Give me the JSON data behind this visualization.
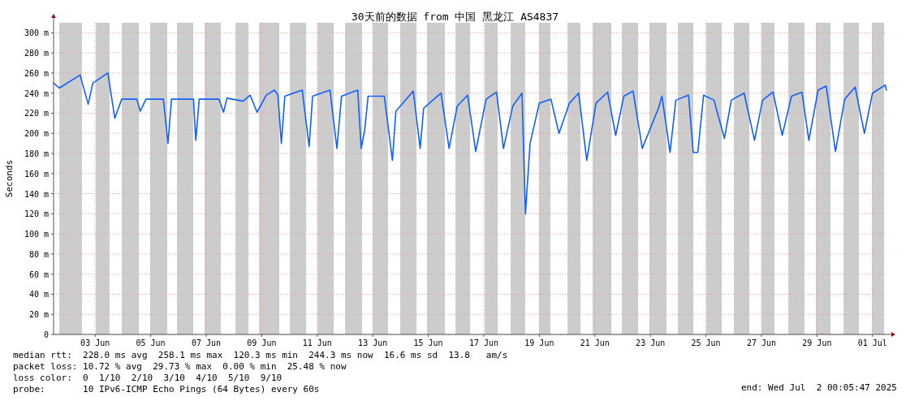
{
  "chart_data": {
    "type": "line",
    "title": "30天前的数据 from 中国 黑龙江 AS4837",
    "ylabel": "Seconds",
    "x": [
      "2025-06-02T00:05",
      "2025-06-02T05:00",
      "2025-06-02T23:00",
      "2025-06-03T06:00",
      "2025-06-03T10:00",
      "2025-06-03T23:00",
      "2025-06-04T05:00",
      "2025-06-04T11:00",
      "2025-06-05T00:00",
      "2025-06-05T03:00",
      "2025-06-05T08:00",
      "2025-06-05T23:00",
      "2025-06-06T03:00",
      "2025-06-06T06:00",
      "2025-06-07T01:00",
      "2025-06-07T03:00",
      "2025-06-07T06:00",
      "2025-06-07T23:00",
      "2025-06-08T03:00",
      "2025-06-08T06:00",
      "2025-06-08T20:00",
      "2025-06-09T02:00",
      "2025-06-09T08:00",
      "2025-06-09T16:00",
      "2025-06-09T23:00",
      "2025-06-10T02:00",
      "2025-06-10T05:00",
      "2025-06-10T08:00",
      "2025-06-10T23:00",
      "2025-06-11T05:00",
      "2025-06-11T08:00",
      "2025-06-11T23:00",
      "2025-06-12T05:00",
      "2025-06-12T09:00",
      "2025-06-12T23:00",
      "2025-06-13T02:00",
      "2025-06-13T05:00",
      "2025-06-13T08:00",
      "2025-06-13T22:00",
      "2025-06-14T05:00",
      "2025-06-14T08:00",
      "2025-06-14T23:00",
      "2025-06-15T05:00",
      "2025-06-15T08:00",
      "2025-06-15T23:00",
      "2025-06-16T06:00",
      "2025-06-16T13:00",
      "2025-06-16T22:00",
      "2025-06-17T05:00",
      "2025-06-17T14:00",
      "2025-06-17T23:00",
      "2025-06-18T05:00",
      "2025-06-18T13:00",
      "2025-06-18T21:00",
      "2025-06-19T00:00",
      "2025-06-19T04:00",
      "2025-06-19T12:00",
      "2025-06-19T22:00",
      "2025-06-20T05:00",
      "2025-06-20T14:00",
      "2025-06-20T22:00",
      "2025-06-21T05:00",
      "2025-06-21T13:00",
      "2025-06-21T23:00",
      "2025-06-22T06:00",
      "2025-06-22T13:00",
      "2025-06-22T21:00",
      "2025-06-23T05:00",
      "2025-06-23T19:00",
      "2025-06-23T22:00",
      "2025-06-24T05:00",
      "2025-06-24T10:00",
      "2025-06-24T21:00",
      "2025-06-25T01:00",
      "2025-06-25T05:00",
      "2025-06-25T10:00",
      "2025-06-25T19:00",
      "2025-06-26T04:00",
      "2025-06-26T10:00",
      "2025-06-26T21:00",
      "2025-06-27T06:00",
      "2025-06-27T13:00",
      "2025-06-27T22:00",
      "2025-06-28T06:00",
      "2025-06-28T14:00",
      "2025-06-28T23:00",
      "2025-06-29T05:00",
      "2025-06-29T13:00",
      "2025-06-29T20:00",
      "2025-06-30T04:00",
      "2025-06-30T12:00",
      "2025-06-30T21:00",
      "2025-07-01T05:00",
      "2025-07-01T12:00",
      "2025-07-01T23:00",
      "2025-07-02T00:05"
    ],
    "series": [
      {
        "color": "#1060ff",
        "values": [
          250,
          245,
          258,
          229,
          250,
          260,
          215,
          234,
          234,
          222,
          234,
          234,
          190,
          234,
          234,
          193,
          234,
          234,
          221,
          235,
          232,
          238,
          221,
          238,
          243,
          238,
          190,
          237,
          243,
          187,
          237,
          243,
          185,
          237,
          243,
          185,
          203,
          237,
          237,
          173,
          222,
          242,
          185,
          225,
          240,
          185,
          227,
          238,
          182,
          234,
          241,
          185,
          227,
          240,
          120,
          190,
          230,
          234,
          200,
          230,
          240,
          173,
          230,
          241,
          198,
          237,
          242,
          185,
          225,
          237,
          181,
          233,
          238,
          181,
          181,
          238,
          233,
          195,
          233,
          240,
          193,
          233,
          241,
          198,
          237,
          241,
          193,
          243,
          247,
          182,
          234,
          246,
          200,
          240,
          248,
          243
        ]
      }
    ],
    "xlim": [
      "2025-06-02T00:05",
      "2025-07-02T00:05"
    ],
    "xticks": [
      {
        "value": "2025-06-03T12:00",
        "label": "03 Jun"
      },
      {
        "value": "2025-06-05T12:00",
        "label": "05 Jun"
      },
      {
        "value": "2025-06-07T12:00",
        "label": "07 Jun"
      },
      {
        "value": "2025-06-09T12:00",
        "label": "09 Jun"
      },
      {
        "value": "2025-06-11T12:00",
        "label": "11 Jun"
      },
      {
        "value": "2025-06-13T12:00",
        "label": "13 Jun"
      },
      {
        "value": "2025-06-15T12:00",
        "label": "15 Jun"
      },
      {
        "value": "2025-06-17T12:00",
        "label": "17 Jun"
      },
      {
        "value": "2025-06-19T12:00",
        "label": "19 Jun"
      },
      {
        "value": "2025-06-21T12:00",
        "label": "21 Jun"
      },
      {
        "value": "2025-06-23T12:00",
        "label": "23 Jun"
      },
      {
        "value": "2025-06-25T12:00",
        "label": "25 Jun"
      },
      {
        "value": "2025-06-27T12:00",
        "label": "27 Jun"
      },
      {
        "value": "2025-06-29T12:00",
        "label": "29 Jun"
      },
      {
        "value": "2025-07-01T12:00",
        "label": "01 Jul"
      }
    ],
    "ylim": [
      0,
      310
    ],
    "yticks": [
      0,
      {
        "value": 20,
        "label": "20 m"
      },
      {
        "value": 40,
        "label": "40 m"
      },
      {
        "value": 60,
        "label": "60 m"
      },
      {
        "value": 80,
        "label": "80 m"
      },
      {
        "value": 100,
        "label": "100 m"
      },
      {
        "value": 120,
        "label": "120 m"
      },
      {
        "value": 140,
        "label": "140 m"
      },
      {
        "value": 160,
        "label": "160 m"
      },
      {
        "value": 180,
        "label": "180 m"
      },
      {
        "value": 200,
        "label": "200 m"
      },
      {
        "value": 220,
        "label": "220 m"
      },
      {
        "value": 240,
        "label": "240 m"
      },
      {
        "value": 260,
        "label": "260 m"
      },
      {
        "value": 280,
        "label": "280 m"
      },
      {
        "value": 300,
        "label": "300 m"
      }
    ],
    "grid": true,
    "bands": [
      {
        "axis": "x",
        "from": "2025-06-02T05:04",
        "to": "2025-06-03T00:42",
        "color": "#cccccc"
      },
      {
        "axis": "x",
        "from": "2025-06-03T12:38",
        "to": "2025-06-04T00:33",
        "color": "#cccccc"
      },
      {
        "axis": "x",
        "from": "2025-06-04T11:05",
        "to": "2025-06-05T01:49",
        "color": "#cccccc"
      },
      {
        "axis": "x",
        "from": "2025-06-05T11:39",
        "to": "2025-06-06T02:23",
        "color": "#cccccc"
      },
      {
        "axis": "x",
        "from": "2025-06-06T10:48",
        "to": "2025-06-07T00:50",
        "color": "#cccccc"
      },
      {
        "axis": "x",
        "from": "2025-06-07T10:40",
        "to": "2025-06-08T00:42",
        "color": "#cccccc"
      },
      {
        "axis": "x",
        "from": "2025-06-08T13:20",
        "to": "2025-06-09T00:33",
        "color": "#cccccc"
      },
      {
        "axis": "x",
        "from": "2025-06-09T09:42",
        "to": "2025-06-10T03:14",
        "color": "#cccccc"
      },
      {
        "axis": "x",
        "from": "2025-06-10T12:22",
        "to": "2025-06-11T02:23",
        "color": "#cccccc"
      },
      {
        "axis": "x",
        "from": "2025-06-11T12:13",
        "to": "2025-06-12T02:15",
        "color": "#cccccc"
      },
      {
        "axis": "x",
        "from": "2025-06-12T12:04",
        "to": "2025-06-13T02:49",
        "color": "#cccccc"
      },
      {
        "axis": "x",
        "from": "2025-06-13T11:56",
        "to": "2025-06-14T01:16",
        "color": "#cccccc"
      },
      {
        "axis": "x",
        "from": "2025-06-14T11:47",
        "to": "2025-06-15T01:49",
        "color": "#cccccc"
      },
      {
        "axis": "x",
        "from": "2025-06-15T10:57",
        "to": "2025-06-16T02:23",
        "color": "#cccccc"
      },
      {
        "axis": "x",
        "from": "2025-06-16T11:31",
        "to": "2025-06-17T00:09",
        "color": "#cccccc"
      },
      {
        "axis": "x",
        "from": "2025-06-17T12:46",
        "to": "2025-06-18T00:00",
        "color": "#cccccc"
      },
      {
        "axis": "x",
        "from": "2025-06-18T11:14",
        "to": "2025-06-18T23:51",
        "color": "#cccccc"
      },
      {
        "axis": "x",
        "from": "2025-06-19T11:47",
        "to": "2025-06-19T21:37",
        "color": "#cccccc"
      },
      {
        "axis": "x",
        "from": "2025-06-20T12:22",
        "to": "2025-06-20T23:34",
        "color": "#cccccc"
      },
      {
        "axis": "x",
        "from": "2025-06-21T10:06",
        "to": "2025-06-22T02:15",
        "color": "#cccccc"
      },
      {
        "axis": "x",
        "from": "2025-06-22T11:22",
        "to": "2025-06-23T01:23",
        "color": "#cccccc"
      },
      {
        "axis": "x",
        "from": "2025-06-23T11:14",
        "to": "2025-06-24T01:58",
        "color": "#cccccc"
      },
      {
        "axis": "x",
        "from": "2025-06-24T11:47",
        "to": "2025-06-25T01:08",
        "color": "#cccccc"
      },
      {
        "axis": "x",
        "from": "2025-06-25T12:22",
        "to": "2025-06-26T01:41",
        "color": "#cccccc"
      },
      {
        "axis": "x",
        "from": "2025-06-26T12:13",
        "to": "2025-06-27T01:32",
        "color": "#cccccc"
      },
      {
        "axis": "x",
        "from": "2025-06-27T12:04",
        "to": "2025-06-27T23:18",
        "color": "#cccccc"
      },
      {
        "axis": "x",
        "from": "2025-06-28T11:14",
        "to": "2025-06-29T01:16",
        "color": "#cccccc"
      },
      {
        "axis": "x",
        "from": "2025-06-29T11:05",
        "to": "2025-06-29T23:43",
        "color": "#cccccc"
      },
      {
        "axis": "x",
        "from": "2025-06-30T10:57",
        "to": "2025-07-01T00:16",
        "color": "#cccccc"
      },
      {
        "axis": "x",
        "from": "2025-07-01T11:31",
        "to": "2025-07-01T22:02",
        "color": "#cccccc"
      }
    ],
    "annotations": [
      "median rtt:  228.0 ms avg  258.1 ms max  120.3 ms min  244.3 ms now  16.6 ms sd  13.8   am/s",
      "packet loss: 10.72 % avg  29.73 % max  0.00 % min  25.48 % now",
      "loss color:  0  1/10  2/10  3/10  4/10  5/10  9/10",
      "probe:       10 IPv6-ICMP Echo Pings (64 Bytes) every 60s",
      "end: Wed Jul  2 00:05:47 2025"
    ]
  }
}
